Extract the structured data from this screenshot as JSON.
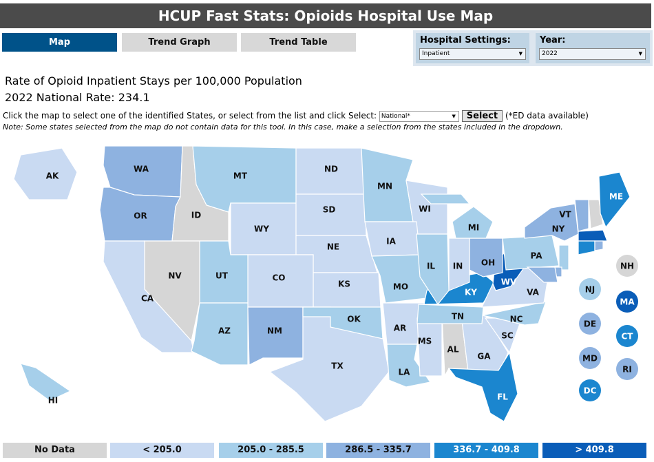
{
  "header": {
    "title": "HCUP Fast Stats: Opioids Hospital Use Map"
  },
  "tabs": [
    {
      "label": "Map",
      "active": true
    },
    {
      "label": "Trend Graph",
      "active": false
    },
    {
      "label": "Trend Table",
      "active": false
    }
  ],
  "controls": {
    "hospital_settings": {
      "label": "Hospital Settings:",
      "value": "Inpatient"
    },
    "year": {
      "label": "Year:",
      "value": "2022"
    }
  },
  "main": {
    "title": "Rate of Opioid Inpatient Stays per 100,000 Population",
    "national_rate": "2022 National Rate: 234.1",
    "instruction": "Click the map to select one of the identified States, or select from the list and click Select:",
    "state_select_value": "National*",
    "select_label": "Select",
    "ed_note": "(*ED data available)",
    "note": "Note: Some states selected from the map do not contain data for this tool. In this case, make a selection from the states included in the dropdown."
  },
  "legend": [
    {
      "label": "No Data",
      "color": "#d6d6d6",
      "text_color": "#111111"
    },
    {
      "label": "< 205.0",
      "color": "#c9daf2",
      "text_color": "#111111"
    },
    {
      "label": "205.0 - 285.5",
      "color": "#a6cfea",
      "text_color": "#111111"
    },
    {
      "label": "286.5 - 335.7",
      "color": "#8eb2e0",
      "text_color": "#111111"
    },
    {
      "label": "336.7 - 409.8",
      "color": "#1b86cf",
      "text_color": "#ffffff"
    },
    {
      "label": "> 409.8",
      "color": "#0a5db8",
      "text_color": "#ffffff"
    }
  ],
  "states": {
    "AK": 1,
    "HI": 2,
    "WA": 3,
    "OR": 3,
    "ID": 0,
    "MT": 2,
    "WY": 1,
    "ND": 1,
    "SD": 1,
    "NE": 1,
    "KS": 1,
    "CO": 1,
    "UT": 2,
    "NV": 0,
    "CA": 1,
    "AZ": 2,
    "NM": 3,
    "TX": 1,
    "OK": 2,
    "MN": 2,
    "WI": 1,
    "IA": 1,
    "MO": 2,
    "AR": 1,
    "LA": 2,
    "MS": 1,
    "AL": 0,
    "GA": 1,
    "FL": 4,
    "SC": 1,
    "NC": 2,
    "TN": 2,
    "KY": 4,
    "VA": 1,
    "WV": 5,
    "OH": 3,
    "IN": 1,
    "IL": 2,
    "MI": 2,
    "PA": 2,
    "NY": 3,
    "VT": 3,
    "NH": 0,
    "ME": 4,
    "MA": 5,
    "CT": 4,
    "RI": 3,
    "NJ": 2,
    "DE": 3,
    "MD": 3,
    "DC": 4
  }
}
